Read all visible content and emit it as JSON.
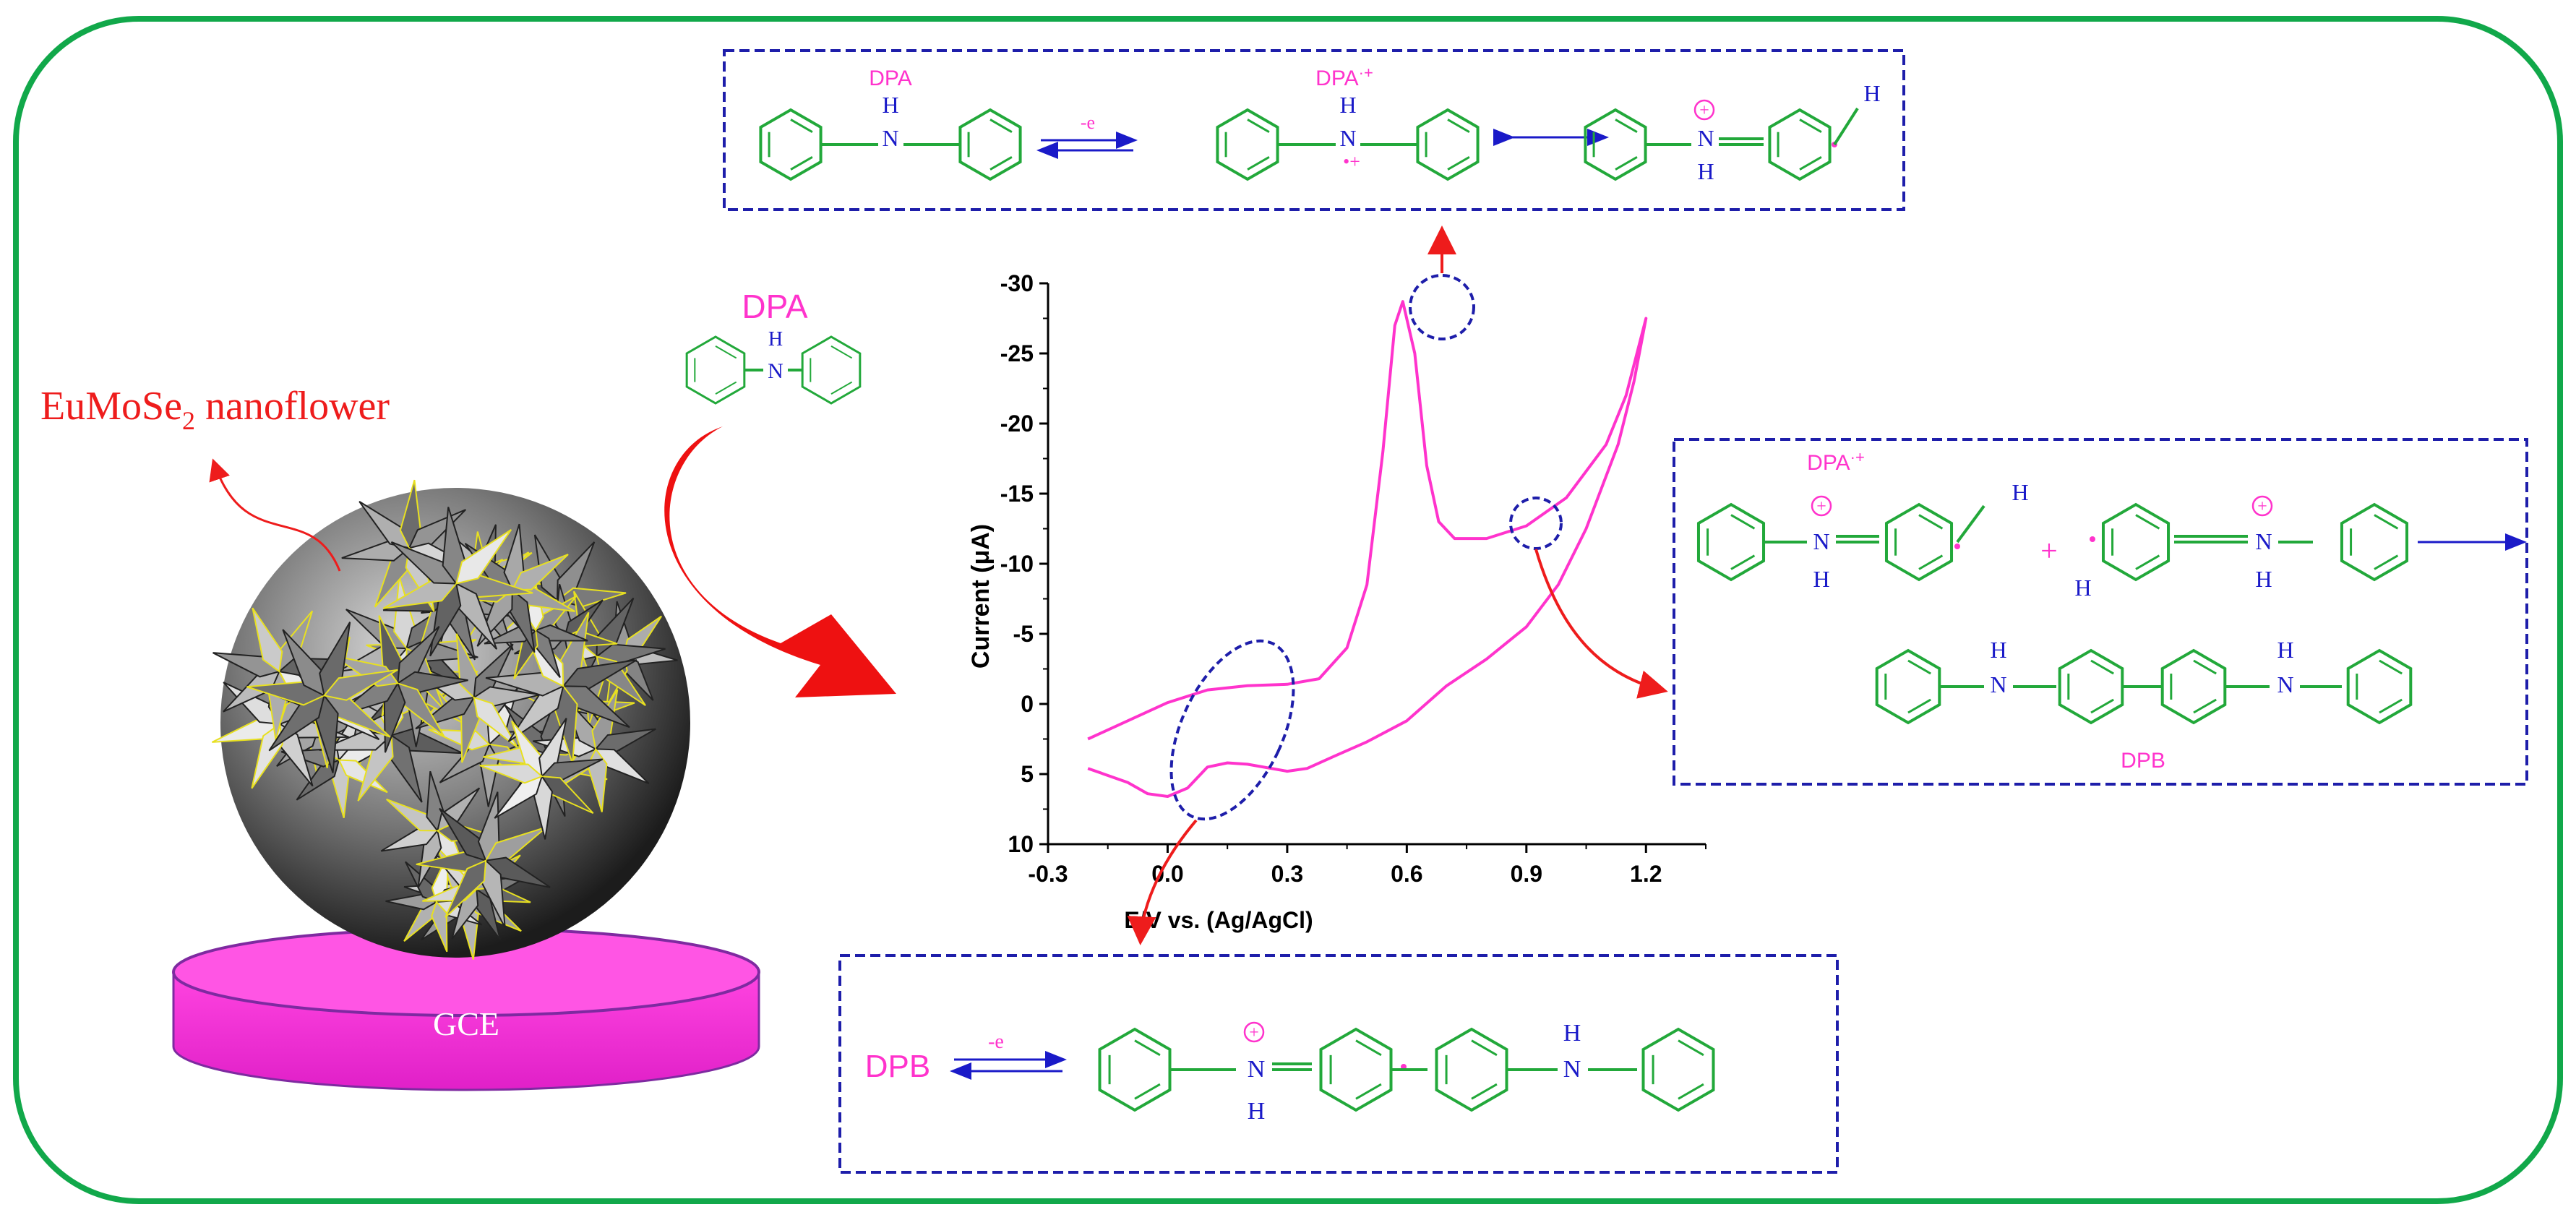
{
  "colors": {
    "frame": "#11a84a",
    "ring": "#22a83a",
    "atom": "#1a1ac8",
    "box": "#1e1eaa",
    "magenta": "#ff33cc",
    "curve": "#ff33cc",
    "red": "#ee1c1c",
    "disk": "#ff33dd",
    "disk_edge": "#7e2aa0",
    "axis": "#000000"
  },
  "labels": {
    "nanoflower": "EuMoSe",
    "nanoflower_sub": "2",
    "nanoflower_tail": " nanoflower",
    "electrode": "GCE",
    "dpa_reagent": "DPA"
  },
  "top_panel": {
    "dpa_label": "DPA",
    "arrow_label": "-e",
    "radical_label": "DPA",
    "radical_sup": "·+",
    "h": "H",
    "n": "N",
    "radical_mark": "•+",
    "charge": "+"
  },
  "right_panel": {
    "radical_label": "DPA",
    "radical_sup": "·+",
    "plus": "+",
    "h": "H",
    "n": "N",
    "charge": "+",
    "product_label": "DPB"
  },
  "bottom_panel": {
    "dpb_label": "DPB",
    "arrow_label": "-e",
    "h": "H",
    "n": "N",
    "charge": "+"
  },
  "chart_data": {
    "type": "line",
    "title": "",
    "xlabel": "E/V vs. (Ag/AgCl)",
    "ylabel": "Current (μA)",
    "xlim": [
      -0.3,
      1.35
    ],
    "ylim": [
      10,
      -30
    ],
    "x_ticks": [
      "-0.3",
      "0.0",
      "0.3",
      "0.6",
      "0.9",
      "1.2"
    ],
    "y_ticks": [
      "-30",
      "-25",
      "-20",
      "-15",
      "-10",
      "-5",
      "0",
      "5",
      "10"
    ],
    "grid": false,
    "series": [
      {
        "points": [
          [
            -0.2,
            2.5
          ],
          [
            -0.1,
            1.2
          ],
          [
            0.0,
            -0.1
          ],
          [
            0.1,
            -1.0
          ],
          [
            0.2,
            -1.3
          ],
          [
            0.3,
            -1.4
          ],
          [
            0.38,
            -1.8
          ],
          [
            0.45,
            -4.0
          ],
          [
            0.5,
            -8.5
          ],
          [
            0.54,
            -18.0
          ],
          [
            0.57,
            -27.0
          ],
          [
            0.59,
            -28.7
          ],
          [
            0.62,
            -25.0
          ],
          [
            0.65,
            -17.0
          ],
          [
            0.68,
            -13.0
          ],
          [
            0.72,
            -11.8
          ],
          [
            0.8,
            -11.8
          ],
          [
            0.9,
            -12.7
          ],
          [
            1.0,
            -14.7
          ],
          [
            1.1,
            -18.5
          ],
          [
            1.15,
            -22.0
          ],
          [
            1.2,
            -27.5
          ],
          [
            1.2,
            -27.5
          ],
          [
            1.17,
            -23.0
          ],
          [
            1.13,
            -18.5
          ],
          [
            1.05,
            -12.5
          ],
          [
            0.98,
            -8.5
          ],
          [
            0.9,
            -5.5
          ],
          [
            0.8,
            -3.2
          ],
          [
            0.7,
            -1.3
          ],
          [
            0.6,
            1.2
          ],
          [
            0.5,
            2.7
          ],
          [
            0.42,
            3.7
          ],
          [
            0.35,
            4.6
          ],
          [
            0.3,
            4.8
          ],
          [
            0.2,
            4.3
          ],
          [
            0.15,
            4.2
          ],
          [
            0.1,
            4.5
          ],
          [
            0.05,
            6.0
          ],
          [
            0.0,
            6.6
          ],
          [
            -0.05,
            6.4
          ],
          [
            -0.1,
            5.6
          ],
          [
            -0.2,
            4.6
          ]
        ]
      }
    ]
  }
}
